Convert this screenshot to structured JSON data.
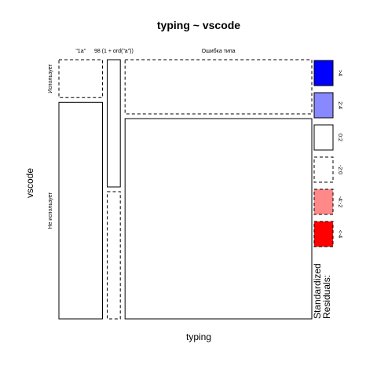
{
  "chart_data": {
    "type": "mosaic",
    "title": "typing ~ vscode",
    "xlabel": "typing",
    "ylabel": "vscode",
    "x_categories": [
      "\"1a\"",
      "98 (1 + ord(\"a\"))",
      "Ошибка типа"
    ],
    "y_categories": [
      "Использует",
      "Не использует"
    ],
    "x_proportions": [
      0.179,
      0.054,
      0.767
    ],
    "cells": [
      {
        "x": "\"1a\"",
        "y": "Использует",
        "proportion": 0.149,
        "residual_class": "-2:0"
      },
      {
        "x": "\"1a\"",
        "y": "Не использует",
        "proportion": 0.851,
        "residual_class": "0:2"
      },
      {
        "x": "98 (1 + ord(\"a\"))",
        "y": "Использует",
        "proportion": 0.5,
        "residual_class": "0:2"
      },
      {
        "x": "98 (1 + ord(\"a\"))",
        "y": "Не использует",
        "proportion": 0.5,
        "residual_class": "-2:0"
      },
      {
        "x": "Ошибка типа",
        "y": "Использует",
        "proportion": 0.213,
        "residual_class": "-2:0"
      },
      {
        "x": "Ошибка типа",
        "y": "Не использует",
        "proportion": 0.787,
        "residual_class": "0:2"
      }
    ],
    "legend": {
      "title": "Standardized\nResiduals:",
      "placement": "right",
      "items": [
        {
          "label": ">4",
          "fill": "#0000ff",
          "dashed": false
        },
        {
          "label": "2:4",
          "fill": "#8888ff",
          "dashed": false
        },
        {
          "label": "0:2",
          "fill": "#ffffff",
          "dashed": false
        },
        {
          "label": "-2:0",
          "fill": "#ffffff",
          "dashed": true
        },
        {
          "label": "-4:-2",
          "fill": "#ff8888",
          "dashed": true
        },
        {
          "label": "<-4",
          "fill": "#ff0000",
          "dashed": true
        }
      ]
    }
  }
}
